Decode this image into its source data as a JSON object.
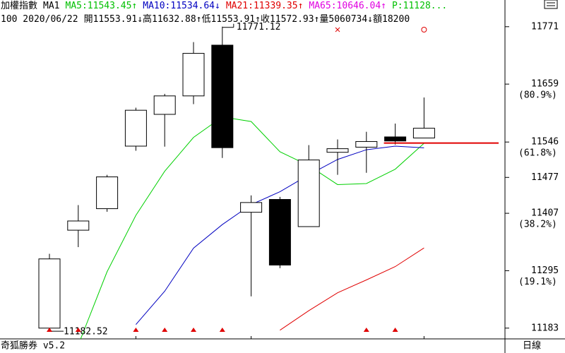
{
  "chart_data": {
    "type": "candlestick",
    "header_row1": [
      {
        "text": "加權指數",
        "color": "#000000"
      },
      {
        "text": "MA1",
        "color": "#000000"
      },
      {
        "text": "MA5:11543.45↑",
        "color": "#00c000"
      },
      {
        "text": "MA10:11534.64↓",
        "color": "#0000c0"
      },
      {
        "text": "MA21:11339.35↑",
        "color": "#e00000"
      },
      {
        "text": "MA65:10646.04↑",
        "color": "#e000e0"
      },
      {
        "text": "P:11128...",
        "color": "#00c000"
      }
    ],
    "header_row2": [
      "100 2020/06/22",
      "開11553.91↓",
      "高11632.88↑",
      "低11553.91↑",
      "收11572.93↑",
      "量5060734↓",
      "額18200"
    ],
    "footer_left": "奇狐勝券 v5.2",
    "footer_right": "日線",
    "open": [
      11183,
      11374,
      11416,
      11538,
      11600,
      11636,
      11735,
      11409,
      11434,
      11381,
      11526,
      11536,
      11556,
      11553.91
    ],
    "high": [
      11328,
      11423,
      11482,
      11613,
      11640,
      11741,
      11771.12,
      11442,
      11439,
      11540,
      11551,
      11566,
      11582,
      11632.88
    ],
    "low": [
      11182.52,
      11341,
      11410,
      11529,
      11537,
      11620,
      11515,
      11245,
      11300,
      11381,
      11482,
      11486,
      11541,
      11553.91
    ],
    "close": [
      11318,
      11392,
      11478,
      11608,
      11636,
      11719,
      11535,
      11428,
      11306,
      11511,
      11533,
      11547,
      11548,
      11572.93
    ],
    "series": [
      {
        "name": "MA5",
        "color": "#00d000",
        "values": [
          null,
          11150,
          11293,
          11403,
          11489,
          11555,
          11595,
          11586,
          11527,
          11500,
          11463,
          11465,
          11493,
          11543.45
        ]
      },
      {
        "name": "MA10",
        "color": "#0000c0",
        "values": [
          null,
          null,
          null,
          11190,
          11255,
          11339,
          11385,
          11424,
          11449,
          11482,
          11512,
          11531,
          11538,
          11534.64
        ]
      },
      {
        "name": "MA21",
        "color": "#e00000",
        "values": [
          null,
          null,
          null,
          null,
          null,
          null,
          null,
          null,
          11179,
          11217,
          11252,
          11277,
          11303,
          11339.35
        ]
      }
    ],
    "level_line": {
      "value": 11544,
      "color": "#e00000"
    },
    "buy_signals": [
      0,
      1,
      3,
      4,
      5,
      6,
      11,
      12
    ],
    "cross_marker_index": 10,
    "circle_marker_index": 13,
    "ylim": [
      11162,
      11779
    ],
    "yticks": [
      11183,
      11295,
      11407,
      11477,
      11546,
      11659,
      11771
    ],
    "fib_levels": [
      {
        "value": 11295,
        "label": "(19.1%)"
      },
      {
        "value": 11407,
        "label": "(38.2%)"
      },
      {
        "value": 11546,
        "label": "(61.8%)"
      },
      {
        "value": 11659,
        "label": "(80.9%)"
      }
    ]
  }
}
